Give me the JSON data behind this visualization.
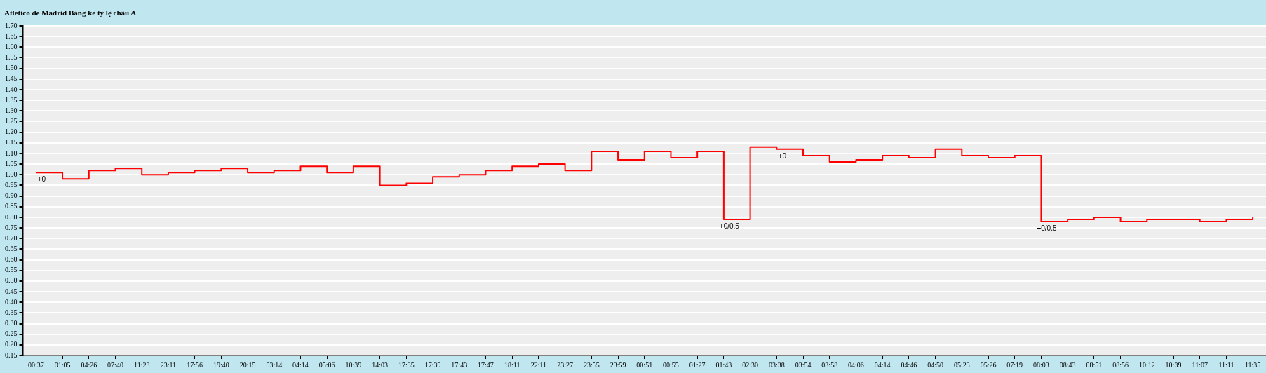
{
  "chart_data": {
    "type": "step",
    "title": "Atletico de Madrid Bảng kê tỷ lệ châu A",
    "categories": [
      "00:37",
      "01:05",
      "04:26",
      "07:40",
      "11:23",
      "23:11",
      "17:56",
      "19:40",
      "20:15",
      "03:14",
      "04:14",
      "05:06",
      "10:39",
      "14:03",
      "17:35",
      "17:39",
      "17:43",
      "17:47",
      "18:11",
      "22:11",
      "23:27",
      "23:55",
      "23:59",
      "00:51",
      "00:55",
      "01:27",
      "01:43",
      "02:30",
      "03:38",
      "03:54",
      "03:58",
      "04:06",
      "04:14",
      "04:46",
      "04:50",
      "05:23",
      "05:26",
      "07:19",
      "08:03",
      "08:43",
      "08:51",
      "08:56",
      "10:12",
      "10:39",
      "11:07",
      "11:11",
      "11:35"
    ],
    "series": [
      {
        "color": "#ff0000",
        "values": [
          1.01,
          0.98,
          1.02,
          1.03,
          1.0,
          1.01,
          1.02,
          1.03,
          1.01,
          1.02,
          1.04,
          1.01,
          1.04,
          0.95,
          0.96,
          0.99,
          1.0,
          1.02,
          1.04,
          1.05,
          1.02,
          1.11,
          1.07,
          1.11,
          1.08,
          1.11,
          0.79,
          1.13,
          1.12,
          1.09,
          1.06,
          1.07,
          1.09,
          1.08,
          1.12,
          1.09,
          1.08,
          1.09,
          0.78,
          0.79,
          0.8,
          0.78,
          0.79,
          0.79,
          0.78,
          0.79,
          0.8
        ]
      }
    ],
    "ylim": [
      0.15,
      1.7
    ],
    "yticks": [
      {
        "value": 0.15,
        "label": "0.15"
      },
      {
        "value": 0.2,
        "label": "0.20"
      },
      {
        "value": 0.25,
        "label": "0.25"
      },
      {
        "value": 0.3,
        "label": "0.30"
      },
      {
        "value": 0.35,
        "label": "0.35"
      },
      {
        "value": 0.4,
        "label": "0.40"
      },
      {
        "value": 0.45,
        "label": "0.45"
      },
      {
        "value": 0.5,
        "label": "0.50"
      },
      {
        "value": 0.55,
        "label": "0.55"
      },
      {
        "value": 0.6,
        "label": "0.60"
      },
      {
        "value": 0.65,
        "label": "0.65"
      },
      {
        "value": 0.7,
        "label": "0.70"
      },
      {
        "value": 0.75,
        "label": "0.75"
      },
      {
        "value": 0.8,
        "label": "0.80"
      },
      {
        "value": 0.85,
        "label": "0.85"
      },
      {
        "value": 0.9,
        "label": "0.90"
      },
      {
        "value": 0.95,
        "label": "0.95"
      },
      {
        "value": 1.0,
        "label": "1.00"
      },
      {
        "value": 1.05,
        "label": "1.05"
      },
      {
        "value": 1.1,
        "label": "1.10"
      },
      {
        "value": 1.15,
        "label": "1.15"
      },
      {
        "value": 1.2,
        "label": "1.20"
      },
      {
        "value": 1.25,
        "label": "1.25"
      },
      {
        "value": 1.3,
        "label": "1.30"
      },
      {
        "value": 1.35,
        "label": "1.35"
      },
      {
        "value": 1.4,
        "label": "1.40"
      },
      {
        "value": 1.45,
        "label": "1.45"
      },
      {
        "value": 1.5,
        "label": "1.50"
      },
      {
        "value": 1.55,
        "label": "1.55"
      },
      {
        "value": 1.6,
        "label": "1.60"
      },
      {
        "value": 1.65,
        "label": "1.65"
      },
      {
        "value": 1.7,
        "label": "1.70"
      }
    ],
    "annotations": [
      {
        "text": "+0",
        "x": "00:37",
        "y": 1.01
      },
      {
        "text": "+0/0.5",
        "x": "01:43",
        "y": 0.79
      },
      {
        "text": "+0",
        "x": "03:38",
        "y": 1.12
      },
      {
        "text": "+0/0.5",
        "x": "08:03",
        "y": 0.78
      }
    ],
    "grid": "y",
    "legend": false
  }
}
